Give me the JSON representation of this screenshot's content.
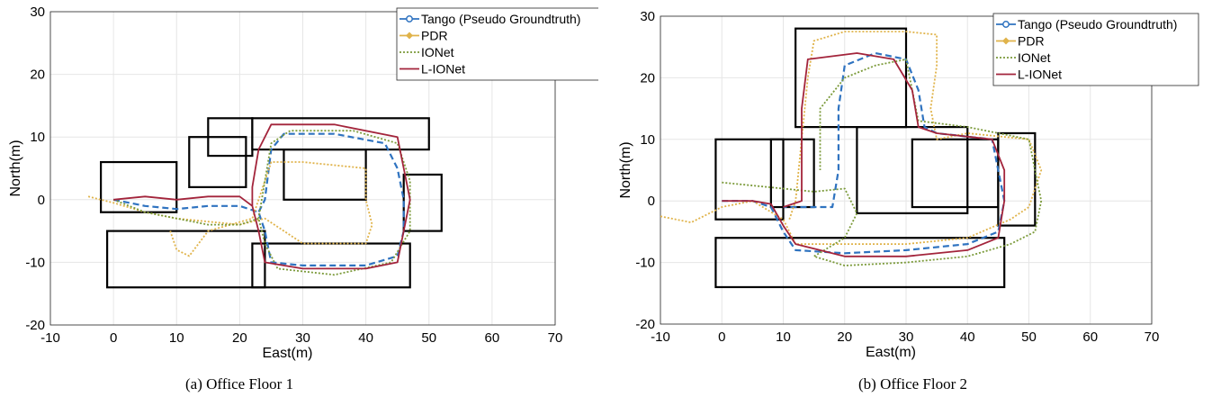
{
  "captions": [
    "(a)  Office Floor 1",
    "(b)  Office Floor 2"
  ],
  "legend": [
    "Tango (Pseudo Groundtruth)",
    "PDR",
    "IONet",
    "L-IONet"
  ],
  "colors": {
    "tango": "#2f73c0",
    "pdr": "#e0b34a",
    "ionet": "#7b9a3a",
    "lionet": "#a3243b",
    "grid": "#e6e6e6",
    "walls": "#000000"
  },
  "chart_data": [
    {
      "type": "line",
      "title": "",
      "xlabel": "East(m)",
      "ylabel": "North(m)",
      "xlim": [
        -10,
        70
      ],
      "ylim": [
        -20,
        30
      ],
      "xticks": [
        -10,
        0,
        10,
        20,
        30,
        40,
        50,
        60,
        70
      ],
      "yticks": [
        -20,
        -10,
        0,
        10,
        20,
        30
      ],
      "grid": true,
      "legend_position": "top-right",
      "series": [
        {
          "name": "Tango (Pseudo Groundtruth)",
          "style": "dashed",
          "points": [
            [
              0,
              0
            ],
            [
              5,
              -1
            ],
            [
              10,
              -1.5
            ],
            [
              15,
              -1
            ],
            [
              20,
              -1
            ],
            [
              23,
              -2
            ],
            [
              24,
              -5
            ],
            [
              25,
              -10
            ],
            [
              30,
              -10.5
            ],
            [
              40,
              -10.5
            ],
            [
              45,
              -9
            ],
            [
              46,
              -5
            ],
            [
              46,
              0
            ],
            [
              45,
              5
            ],
            [
              43,
              9
            ],
            [
              35,
              10.5
            ],
            [
              27,
              10.5
            ],
            [
              25,
              8
            ],
            [
              24,
              0
            ],
            [
              23,
              -2
            ]
          ]
        },
        {
          "name": "PDR",
          "style": "dotted",
          "points": [
            [
              -4,
              0.5
            ],
            [
              0,
              -0.5
            ],
            [
              5,
              -2
            ],
            [
              10,
              -3
            ],
            [
              15,
              -3.5
            ],
            [
              20,
              -4
            ],
            [
              24,
              -3
            ],
            [
              27,
              -5
            ],
            [
              30,
              -7
            ],
            [
              35,
              -7
            ],
            [
              40,
              -7
            ],
            [
              41,
              -4
            ],
            [
              40,
              0
            ],
            [
              40,
              5
            ],
            [
              35,
              5.5
            ],
            [
              30,
              6
            ],
            [
              25,
              6
            ],
            [
              22,
              -3
            ],
            [
              15,
              -5
            ],
            [
              12,
              -9
            ],
            [
              10,
              -8
            ],
            [
              9,
              -5
            ]
          ]
        },
        {
          "name": "IONet",
          "style": "dotted",
          "points": [
            [
              0,
              0
            ],
            [
              5,
              -2
            ],
            [
              10,
              -3
            ],
            [
              15,
              -4
            ],
            [
              20,
              -4
            ],
            [
              23,
              -3
            ],
            [
              24,
              -7
            ],
            [
              26,
              -11
            ],
            [
              35,
              -12
            ],
            [
              44,
              -10
            ],
            [
              47,
              -5
            ],
            [
              47,
              3
            ],
            [
              45,
              9
            ],
            [
              38,
              11
            ],
            [
              28,
              11
            ],
            [
              25,
              9
            ],
            [
              24,
              3
            ],
            [
              23,
              -3
            ]
          ]
        },
        {
          "name": "L-IONet",
          "style": "solid",
          "points": [
            [
              0,
              0
            ],
            [
              5,
              0.5
            ],
            [
              10,
              0
            ],
            [
              15,
              0.5
            ],
            [
              20,
              0.5
            ],
            [
              22,
              -1
            ],
            [
              23,
              -5
            ],
            [
              24,
              -10
            ],
            [
              30,
              -11
            ],
            [
              40,
              -11
            ],
            [
              45,
              -10
            ],
            [
              46,
              -5
            ],
            [
              47,
              0
            ],
            [
              46,
              5
            ],
            [
              45,
              10
            ],
            [
              35,
              12
            ],
            [
              25,
              12
            ],
            [
              23,
              8
            ],
            [
              22,
              2
            ],
            [
              22,
              -1
            ]
          ]
        }
      ]
    },
    {
      "type": "line",
      "title": "",
      "xlabel": "East(m)",
      "ylabel": "North(m)",
      "xlim": [
        -10,
        70
      ],
      "ylim": [
        -20,
        30
      ],
      "xticks": [
        -10,
        0,
        10,
        20,
        30,
        40,
        50,
        60,
        70
      ],
      "yticks": [
        -20,
        -10,
        0,
        10,
        20,
        30
      ],
      "grid": true,
      "legend_position": "top-right",
      "series": [
        {
          "name": "Tango (Pseudo Groundtruth)",
          "style": "dashed",
          "points": [
            [
              0,
              0
            ],
            [
              5,
              0
            ],
            [
              8,
              -1
            ],
            [
              10,
              -5
            ],
            [
              12,
              -8
            ],
            [
              20,
              -8.5
            ],
            [
              30,
              -8
            ],
            [
              40,
              -7
            ],
            [
              45,
              -5
            ],
            [
              46,
              0
            ],
            [
              45,
              5
            ],
            [
              44,
              10
            ],
            [
              35,
              11
            ],
            [
              33,
              12
            ],
            [
              32,
              18
            ],
            [
              30,
              23
            ],
            [
              25,
              24
            ],
            [
              20,
              22
            ],
            [
              19,
              15
            ],
            [
              19,
              5
            ],
            [
              18,
              -1
            ],
            [
              10,
              -1
            ]
          ]
        },
        {
          "name": "PDR",
          "style": "dotted",
          "points": [
            [
              -10,
              -2.5
            ],
            [
              -5,
              -3.5
            ],
            [
              0,
              -1
            ],
            [
              5,
              0
            ],
            [
              10,
              -3
            ],
            [
              12,
              -7
            ],
            [
              20,
              -7
            ],
            [
              30,
              -7
            ],
            [
              40,
              -6
            ],
            [
              47,
              -3
            ],
            [
              50,
              -1
            ],
            [
              52,
              5
            ],
            [
              50,
              10
            ],
            [
              40,
              11
            ],
            [
              35,
              10
            ],
            [
              34,
              15
            ],
            [
              35,
              22
            ],
            [
              35,
              27
            ],
            [
              30,
              27.5
            ],
            [
              20,
              27.5
            ],
            [
              15,
              26
            ],
            [
              14,
              20
            ],
            [
              13,
              10
            ],
            [
              12,
              0
            ],
            [
              11,
              -3
            ]
          ]
        },
        {
          "name": "IONet",
          "style": "dotted",
          "points": [
            [
              0,
              3
            ],
            [
              5,
              2.5
            ],
            [
              10,
              2
            ],
            [
              15,
              1.5
            ],
            [
              20,
              2
            ],
            [
              22,
              -2
            ],
            [
              20,
              -6
            ],
            [
              15,
              -9
            ],
            [
              20,
              -10.5
            ],
            [
              30,
              -10
            ],
            [
              40,
              -9
            ],
            [
              47,
              -7
            ],
            [
              51,
              -5
            ],
            [
              52,
              0
            ],
            [
              51,
              5
            ],
            [
              50,
              10
            ],
            [
              40,
              12
            ],
            [
              32,
              13
            ],
            [
              31,
              18
            ],
            [
              30,
              23
            ],
            [
              25,
              22
            ],
            [
              20,
              20
            ],
            [
              16,
              15
            ],
            [
              16,
              10
            ],
            [
              16,
              5
            ]
          ]
        },
        {
          "name": "L-IONet",
          "style": "solid",
          "points": [
            [
              0,
              0
            ],
            [
              5,
              0
            ],
            [
              8,
              -0.5
            ],
            [
              10,
              -4
            ],
            [
              12,
              -7
            ],
            [
              20,
              -9
            ],
            [
              30,
              -9
            ],
            [
              40,
              -8
            ],
            [
              45,
              -6
            ],
            [
              46,
              0
            ],
            [
              46,
              5
            ],
            [
              44,
              10
            ],
            [
              35,
              11
            ],
            [
              32,
              12
            ],
            [
              31,
              18
            ],
            [
              28,
              23
            ],
            [
              22,
              24
            ],
            [
              14,
              23
            ],
            [
              13,
              15
            ],
            [
              13,
              5
            ],
            [
              13,
              0
            ],
            [
              10,
              -1
            ]
          ]
        }
      ]
    }
  ]
}
